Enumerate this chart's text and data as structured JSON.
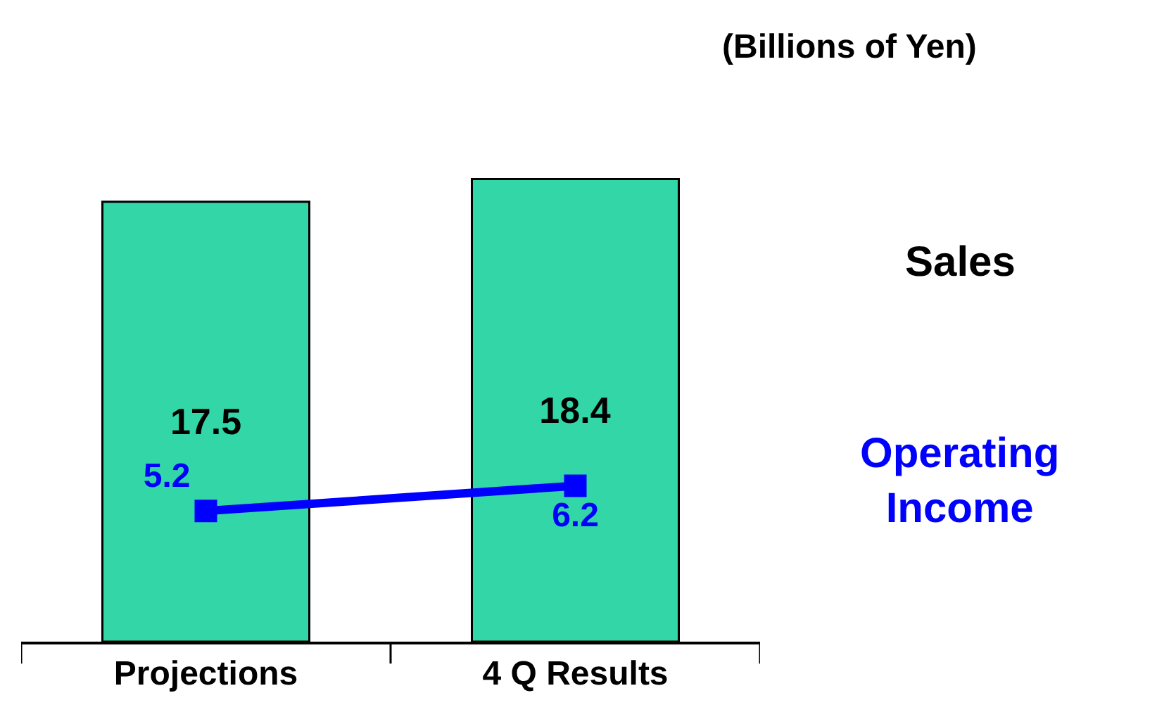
{
  "chart_data": {
    "type": "bar",
    "categories": [
      "Projections",
      "4 Q Results"
    ],
    "series": [
      {
        "name": "Sales",
        "color": "#33d6a6",
        "values": [
          17.5,
          18.4
        ]
      },
      {
        "name": "Operating Income",
        "type": "line",
        "color": "#0000ff",
        "values": [
          5.2,
          6.2
        ],
        "marker": "square"
      }
    ],
    "data_labels": true,
    "annotations": [
      "(Billions of Yen)"
    ],
    "legend": "right"
  }
}
